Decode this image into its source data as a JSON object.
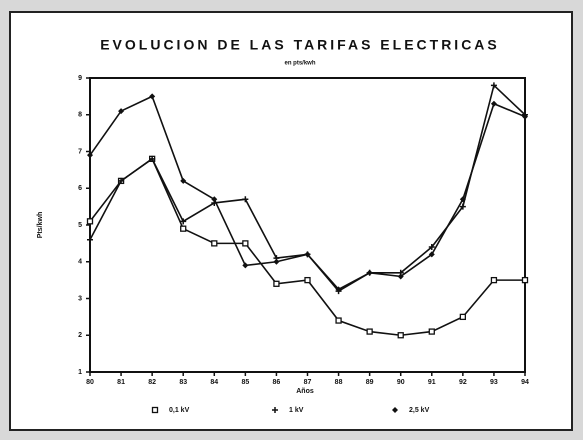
{
  "chart_data": {
    "type": "line",
    "title": "EVOLUCION DE LAS TARIFAS ELECTRICAS",
    "subtitle": "en pts/kwh",
    "x_label": "Años",
    "y_label": "Pts/kwh",
    "categories": [
      "80",
      "81",
      "82",
      "83",
      "84",
      "85",
      "86",
      "87",
      "88",
      "89",
      "90",
      "91",
      "92",
      "93",
      "94"
    ],
    "series": [
      {
        "name": "0,1 kV",
        "color": "#111111",
        "marker": "square",
        "values": [
          5.1,
          6.2,
          6.8,
          4.9,
          4.5,
          4.5,
          3.4,
          3.5,
          2.4,
          2.1,
          2.0,
          2.1,
          2.5,
          3.5,
          3.5
        ]
      },
      {
        "name": "1 kV",
        "color": "#111111",
        "marker": "plus",
        "values": [
          4.6,
          6.2,
          6.8,
          5.1,
          5.6,
          5.7,
          4.1,
          4.2,
          3.2,
          3.7,
          3.7,
          4.4,
          5.5,
          8.8,
          8.0
        ]
      },
      {
        "name": "2,5 kV",
        "color": "#111111",
        "marker": "diamond",
        "values": [
          6.9,
          8.1,
          8.5,
          6.2,
          5.7,
          3.9,
          4.0,
          4.2,
          3.25,
          3.7,
          3.6,
          4.2,
          5.7,
          8.3,
          7.95
        ]
      }
    ],
    "ylim": [
      1,
      9
    ],
    "yticks": [
      1,
      2,
      3,
      4,
      5,
      6,
      7,
      8,
      9
    ]
  }
}
